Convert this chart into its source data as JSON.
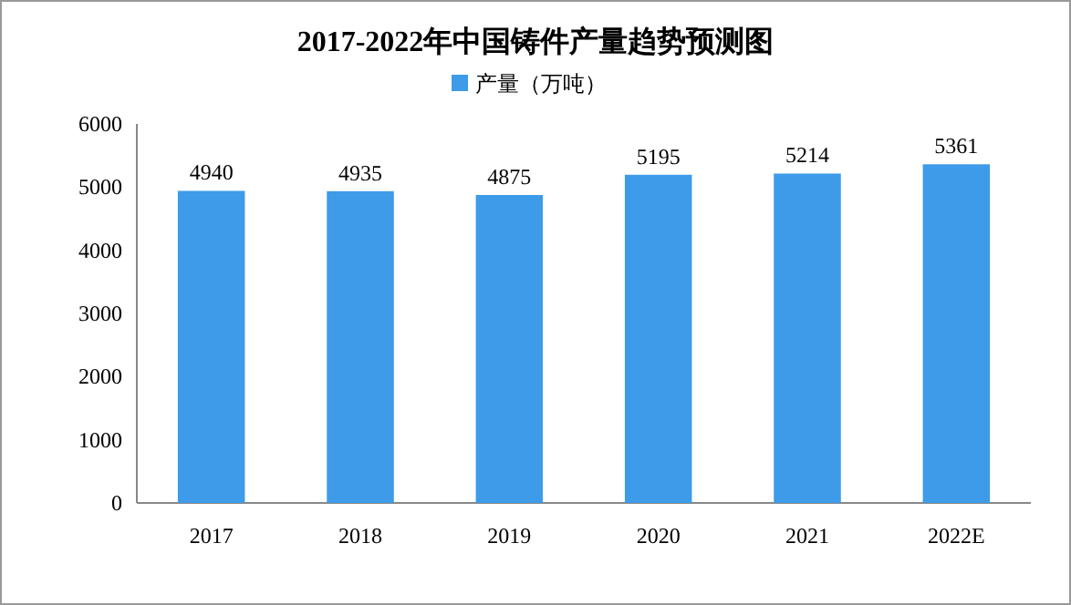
{
  "chart_data": {
    "type": "bar",
    "title": "2017-2022年中国铸件产量趋势预测图",
    "categories": [
      "2017",
      "2018",
      "2019",
      "2020",
      "2021",
      "2022E"
    ],
    "series": [
      {
        "name": "产量（万吨）",
        "color": "#3d9be9",
        "values": [
          4940,
          4935,
          4875,
          5195,
          5214,
          5361
        ]
      }
    ],
    "ylim": [
      0,
      6000
    ],
    "yticks": [
      0,
      1000,
      2000,
      3000,
      4000,
      5000,
      6000
    ],
    "data_labels": true,
    "legend": "top"
  }
}
